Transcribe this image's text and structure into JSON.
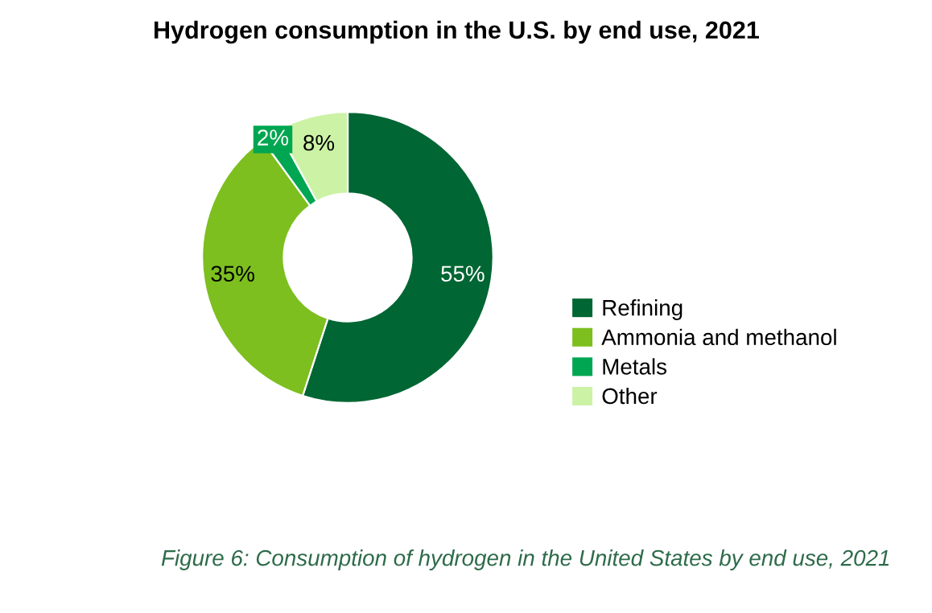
{
  "chart_data": {
    "type": "donut",
    "title": "Hydrogen consumption in the U.S. by end use, 2021",
    "categories": [
      "Refining",
      "Ammonia and methanol",
      "Metals",
      "Other"
    ],
    "values": [
      55,
      35,
      2,
      8
    ],
    "value_labels": [
      "55%",
      "35%",
      "2%",
      "8%"
    ],
    "colors": [
      "#006633",
      "#7dbf1f",
      "#00a651",
      "#ccf2a6"
    ],
    "legend": "right",
    "annotations": [
      "Figure 6: Consumption of hydrogen in the United States by end use, 2021"
    ]
  }
}
